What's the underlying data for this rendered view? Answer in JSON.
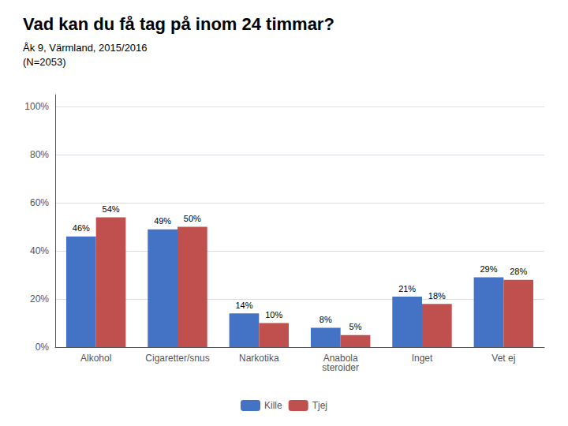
{
  "chart_data": {
    "type": "bar",
    "title": "Vad kan du få tag på inom 24 timmar?",
    "subtitle": "Åk 9, Värmland, 2015/2016\n(N=2053)",
    "categories": [
      "Alkohol",
      "Cigaretter/snus",
      "Narkotika",
      "Anabola\nsteroider",
      "Inget",
      "Vet ej"
    ],
    "series": [
      {
        "name": "Kille",
        "color": "#4472C4",
        "values": [
          46,
          49,
          14,
          8,
          21,
          29
        ],
        "value_labels": [
          "46%",
          "49%",
          "14%",
          "8%",
          "21%",
          "29%"
        ]
      },
      {
        "name": "Tjej",
        "color": "#C0504D",
        "values": [
          54,
          50,
          10,
          5,
          18,
          28
        ],
        "value_labels": [
          "54%",
          "50%",
          "10%",
          "5%",
          "18%",
          "28%"
        ]
      }
    ],
    "ylim": [
      0,
      105
    ],
    "yticks": [
      {
        "value": 0,
        "label": "0%"
      },
      {
        "value": 20,
        "label": "20%"
      },
      {
        "value": 40,
        "label": "40%"
      },
      {
        "value": 60,
        "label": "60%"
      },
      {
        "value": 80,
        "label": "80%"
      },
      {
        "value": 100,
        "label": "100%"
      }
    ],
    "grid": true,
    "legend": "bottom",
    "data_labels": true
  }
}
